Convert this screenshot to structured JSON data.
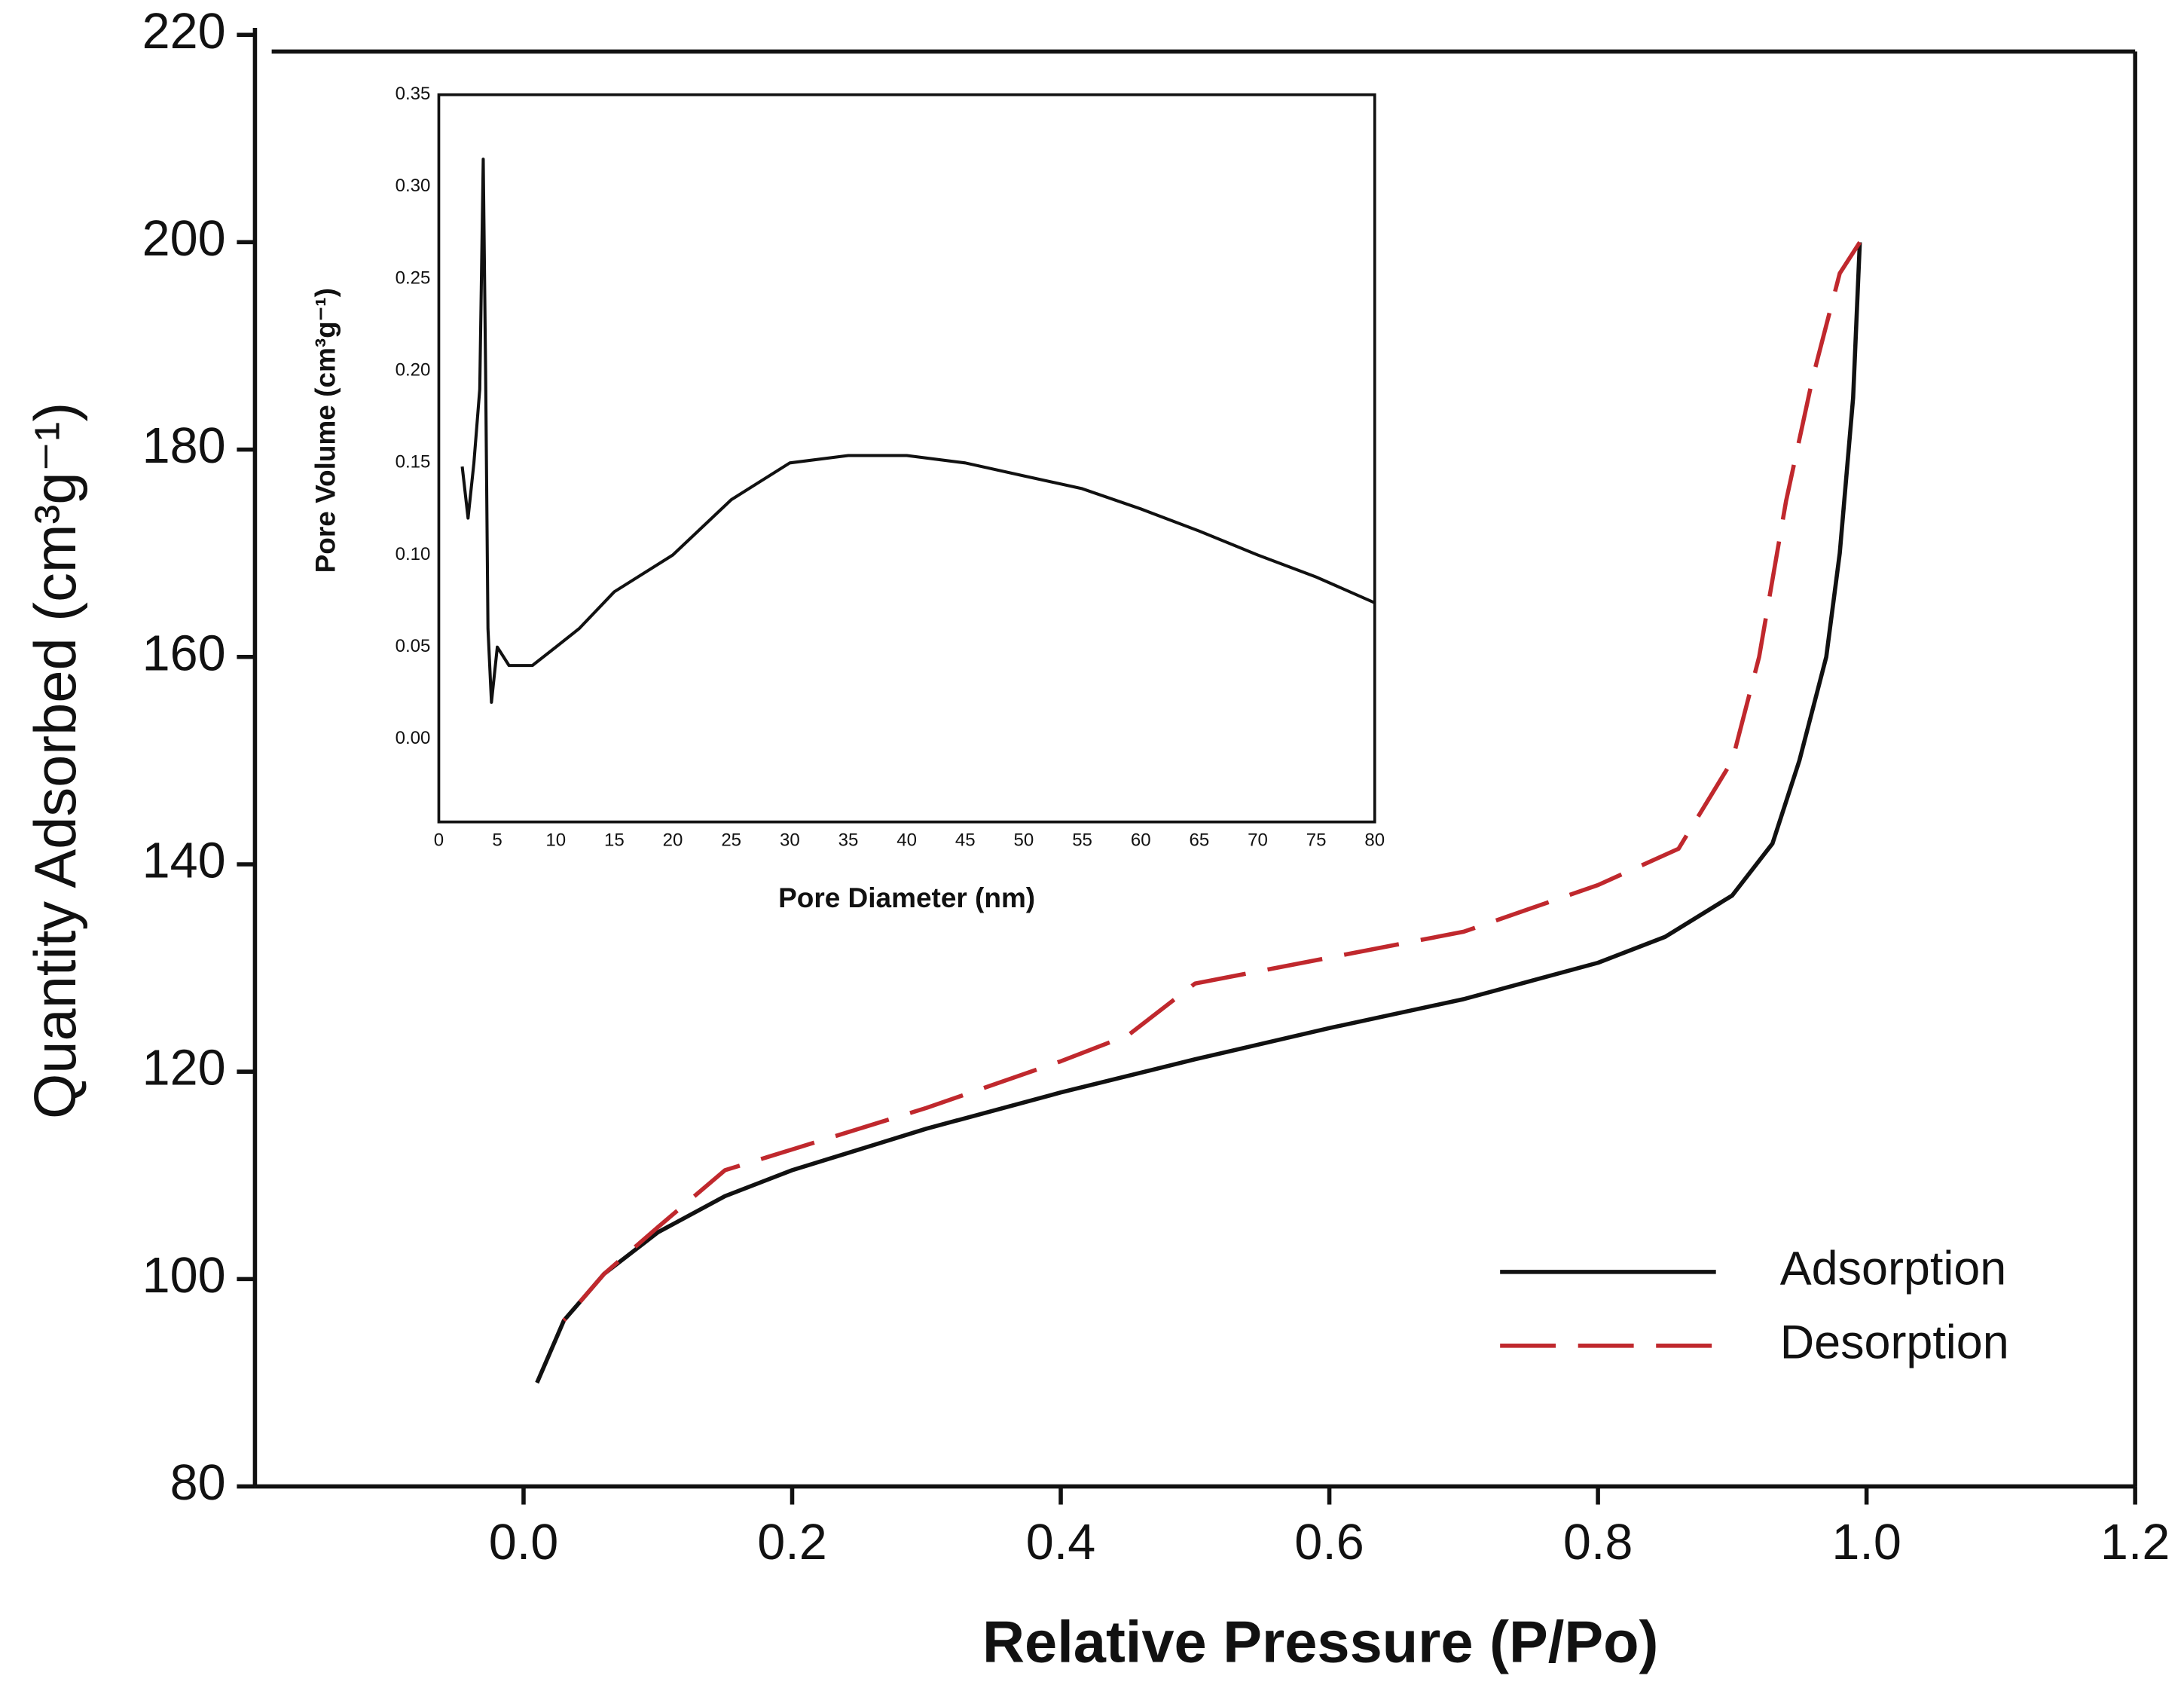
{
  "chart_data": [
    {
      "type": "line",
      "xlabel": "Relative Pressure (P/Po)",
      "ylabel": "Quantity Adsorbed (cm³g⁻¹)",
      "xlim": [
        -0.2,
        1.2
      ],
      "xticks": [
        {
          "value": 0,
          "label": "0.0"
        },
        0.2,
        0.4,
        0.6,
        0.8,
        {
          "value": 1,
          "label": "1.0"
        },
        1.2
      ],
      "ylim": [
        80,
        220
      ],
      "yticks": [
        80,
        100,
        120,
        140,
        160,
        180,
        200,
        220
      ],
      "legend": "lower right",
      "series": [
        {
          "name": "Adsorption",
          "color": "#111111",
          "dash": false,
          "x": [
            0.01,
            0.03,
            0.06,
            0.1,
            0.15,
            0.2,
            0.3,
            0.4,
            0.5,
            0.6,
            0.7,
            0.8,
            0.85,
            0.9,
            0.93,
            0.95,
            0.97,
            0.98,
            0.99,
            0.995
          ],
          "values": [
            90,
            96,
            100.5,
            104.5,
            108,
            110.5,
            114.5,
            118,
            121.2,
            124.2,
            127,
            130.5,
            133,
            137,
            142,
            150,
            160,
            170,
            185,
            200
          ]
        },
        {
          "name": "Desorption",
          "color": "#c0282d",
          "dash": true,
          "x": [
            0.995,
            0.98,
            0.96,
            0.94,
            0.92,
            0.9,
            0.86,
            0.8,
            0.7,
            0.6,
            0.5,
            0.45,
            0.4,
            0.3,
            0.2,
            0.15,
            0.1,
            0.06,
            0.03
          ],
          "values": [
            200,
            197,
            187,
            175,
            160,
            150,
            141.5,
            138,
            133.5,
            131,
            128.5,
            123.5,
            121,
            116.5,
            112.5,
            110.5,
            105,
            100.5,
            96
          ]
        }
      ]
    },
    {
      "type": "line",
      "xlabel": "Pore Diameter (nm)",
      "ylabel": "Pore Volume (cm³g⁻¹)",
      "color": "#111111",
      "xlim": [
        0,
        80
      ],
      "xticks": [
        0,
        5,
        10,
        15,
        20,
        25,
        30,
        35,
        40,
        45,
        50,
        55,
        60,
        65,
        70,
        75,
        80
      ],
      "ylim": [
        -0.045,
        0.35
      ],
      "yticks": [
        {
          "value": 0,
          "label": "0.00"
        },
        0.05,
        {
          "value": 0.1,
          "label": "0.10"
        },
        0.15,
        {
          "value": 0.2,
          "label": "0.20"
        },
        0.25,
        {
          "value": 0.3,
          "label": "0.30"
        },
        0.35
      ],
      "x": [
        2,
        2.5,
        3,
        3.5,
        3.8,
        4,
        4.2,
        4.5,
        5,
        6,
        8,
        10,
        12,
        15,
        20,
        25,
        30,
        35,
        40,
        45,
        50,
        55,
        60,
        65,
        70,
        75,
        80
      ],
      "values": [
        0.148,
        0.12,
        0.15,
        0.19,
        0.315,
        0.2,
        0.06,
        0.02,
        0.05,
        0.04,
        0.04,
        0.05,
        0.06,
        0.08,
        0.1,
        0.13,
        0.15,
        0.154,
        0.154,
        0.15,
        0.143,
        0.136,
        0.125,
        0.113,
        0.1,
        0.088,
        0.074
      ]
    }
  ]
}
